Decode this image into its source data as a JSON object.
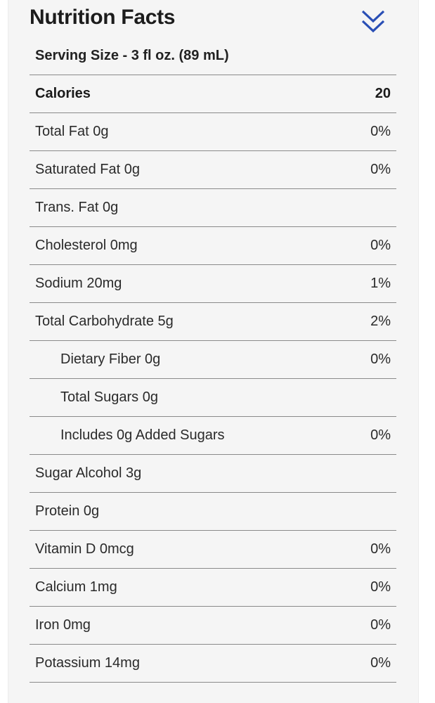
{
  "title": "Nutrition Facts",
  "toggle_icon": "double-chevron-down-icon",
  "accent_color": "#2a4fb5",
  "serving_size": "Serving Size - 3 fl oz. (89 mL)",
  "rows": [
    {
      "label": "Calories",
      "value": "20",
      "bold": true
    },
    {
      "label": "Total Fat 0g",
      "value": "0%"
    },
    {
      "label": "Saturated Fat 0g",
      "value": "0%"
    },
    {
      "label": "Trans. Fat 0g",
      "value": ""
    },
    {
      "label": "Cholesterol 0mg",
      "value": "0%"
    },
    {
      "label": "Sodium 20mg",
      "value": "1%"
    },
    {
      "label": "Total Carbohydrate 5g",
      "value": "2%"
    },
    {
      "label": "Dietary Fiber 0g",
      "value": "0%",
      "indent": true
    },
    {
      "label": "Total Sugars 0g",
      "value": "",
      "indent": true
    },
    {
      "label": "Includes 0g Added Sugars",
      "value": "0%",
      "indent": true
    },
    {
      "label": "Sugar Alcohol 3g",
      "value": ""
    },
    {
      "label": "Protein 0g",
      "value": ""
    },
    {
      "label": "Vitamin D 0mcg",
      "value": "0%"
    },
    {
      "label": "Calcium 1mg",
      "value": "0%"
    },
    {
      "label": "Iron 0mg",
      "value": "0%"
    },
    {
      "label": "Potassium 14mg",
      "value": "0%"
    }
  ]
}
